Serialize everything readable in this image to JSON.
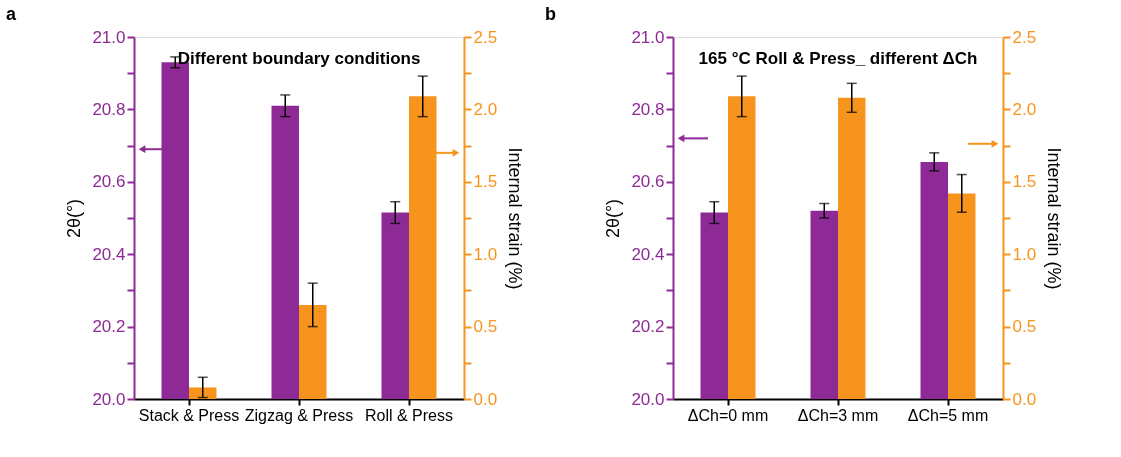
{
  "chart_data": [
    {
      "type": "bar",
      "title": "Different boundary conditions",
      "annotations": [
        "a"
      ],
      "categories": [
        "Stack & Press",
        "Zigzag & Press",
        "Roll & Press"
      ],
      "ylabel": "2θ(°)",
      "y2label": "Internal strain (%)",
      "ylim": [
        20.0,
        21.0
      ],
      "yticks": [
        {
          "value": 20,
          "label": "20.0"
        },
        {
          "value": 20.1,
          "label": null
        },
        20.2,
        {
          "value": 20.3,
          "label": null
        },
        20.4,
        {
          "value": 20.5,
          "label": null
        },
        20.6,
        {
          "value": 20.7,
          "label": null
        },
        20.8,
        {
          "value": 20.9,
          "label": null
        },
        {
          "value": 21,
          "label": "21.0"
        }
      ],
      "y2lim": [
        0.0,
        2.5
      ],
      "y2ticks": [
        {
          "value": 0,
          "label": "0.0"
        },
        {
          "value": 0.25,
          "label": null
        },
        0.5,
        {
          "value": 0.75,
          "label": null
        },
        {
          "value": 1,
          "label": "1.0"
        },
        {
          "value": 1.25,
          "label": null
        },
        1.5,
        {
          "value": 1.75,
          "label": null
        },
        {
          "value": 2,
          "label": "2.0"
        },
        {
          "value": 2.25,
          "label": null
        },
        2.5
      ],
      "series": [
        {
          "color": "#8e2a96",
          "values": [
            20.93,
            20.81,
            20.515
          ],
          "errors": [
            0.015,
            0.03,
            0.03
          ]
        },
        {
          "color": "#f7941d",
          "axis": "y2",
          "values": [
            0.08,
            0.65,
            2.09
          ],
          "errors": [
            0.07,
            0.15,
            0.14
          ]
        }
      ]
    },
    {
      "type": "bar",
      "title": "165 °C Roll & Press_ different ΔCh",
      "annotations": [
        "b"
      ],
      "categories": [
        "ΔCh=0 mm",
        "ΔCh=3 mm",
        "ΔCh=5 mm"
      ],
      "ylabel": "2θ(°)",
      "y2label": "Internal strain (%)",
      "ylim": [
        20.0,
        21.0
      ],
      "yticks": [
        {
          "value": 20,
          "label": "20.0"
        },
        {
          "value": 20.1,
          "label": null
        },
        20.2,
        {
          "value": 20.3,
          "label": null
        },
        20.4,
        {
          "value": 20.5,
          "label": null
        },
        20.6,
        {
          "value": 20.7,
          "label": null
        },
        20.8,
        {
          "value": 20.9,
          "label": null
        },
        {
          "value": 21,
          "label": "21.0"
        }
      ],
      "y2lim": [
        0.0,
        2.5
      ],
      "y2ticks": [
        {
          "value": 0,
          "label": "0.0"
        },
        {
          "value": 0.25,
          "label": null
        },
        0.5,
        {
          "value": 0.75,
          "label": null
        },
        {
          "value": 1,
          "label": "1.0"
        },
        {
          "value": 1.25,
          "label": null
        },
        1.5,
        {
          "value": 1.75,
          "label": null
        },
        {
          "value": 2,
          "label": "2.0"
        },
        {
          "value": 2.25,
          "label": null
        },
        2.5
      ],
      "series": [
        {
          "color": "#8e2a96",
          "values": [
            20.515,
            20.52,
            20.655
          ],
          "errors": [
            0.03,
            0.02,
            0.025
          ]
        },
        {
          "color": "#f7941d",
          "axis": "y2",
          "values": [
            2.09,
            2.08,
            1.42
          ],
          "errors": [
            0.14,
            0.1,
            0.13
          ]
        }
      ]
    }
  ]
}
